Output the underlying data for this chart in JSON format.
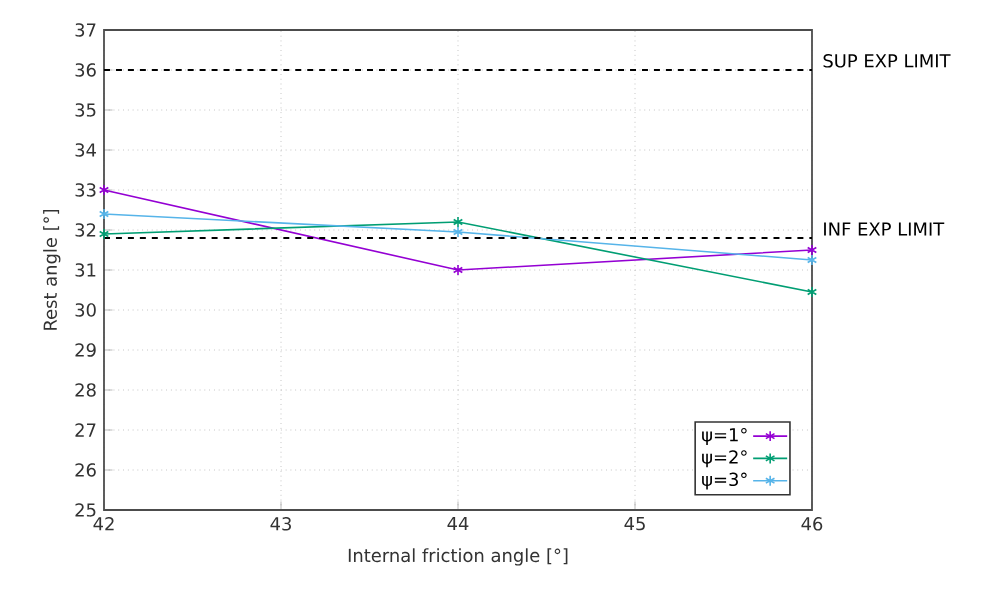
{
  "chart_data": {
    "type": "line",
    "xlabel": "Internal friction angle [°]",
    "ylabel": "Rest angle [°]",
    "x": [
      42,
      44,
      46
    ],
    "series": [
      {
        "name": "ψ=1°",
        "color": "#9400d3",
        "values": [
          33,
          31,
          31.5
        ],
        "marker": "cross"
      },
      {
        "name": "ψ=2°",
        "color": "#009e73",
        "values": [
          31.9,
          32.2,
          30.45
        ],
        "marker": "cross"
      },
      {
        "name": "ψ=3°",
        "color": "#56b4e9",
        "values": [
          32.4,
          31.95,
          31.25
        ],
        "marker": "cross"
      }
    ],
    "xlim": [
      42,
      46
    ],
    "xticks": [
      42,
      43,
      44,
      45,
      46
    ],
    "ylim": [
      25,
      37
    ],
    "yticks": [
      25,
      26,
      27,
      28,
      29,
      30,
      31,
      32,
      33,
      34,
      35,
      36,
      37
    ],
    "ref_lines": [
      {
        "axis": "y",
        "value": 36,
        "label": "SUP EXP LIMIT",
        "color": "#000000",
        "line_style": "dashed"
      },
      {
        "axis": "y",
        "value": 31.8,
        "label": "INF EXP LIMIT",
        "color": "#000000",
        "line_style": "dashed"
      }
    ],
    "grid": true,
    "legend": "bottom right",
    "line_style": "solid"
  }
}
